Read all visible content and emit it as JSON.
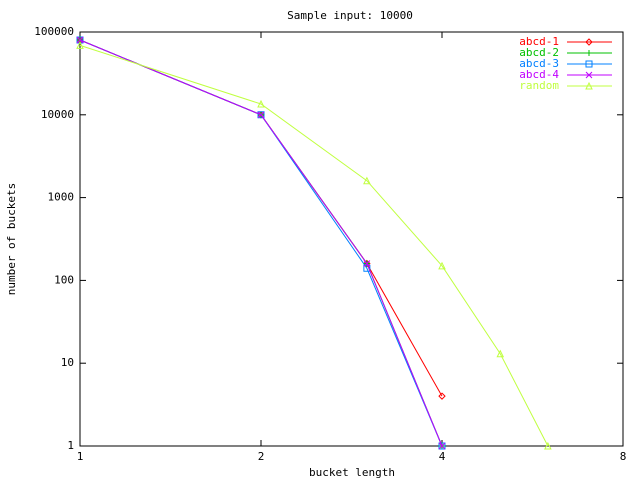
{
  "chart_data": {
    "type": "line",
    "title": "Sample input: 10000",
    "x_label": "bucket length",
    "y_label": "number of buckets",
    "xscale": "log",
    "yscale": "log",
    "xlim": [
      1,
      8
    ],
    "xticks": [
      1,
      2,
      4,
      8
    ],
    "ylim": [
      1,
      100000
    ],
    "yticks": [
      1,
      10,
      100,
      1000,
      10000,
      100000
    ],
    "legend": "top-right",
    "series": [
      {
        "name": "abcd-1",
        "color": "#ff0000",
        "marker": "diamond",
        "x": [
          1,
          2,
          3,
          4
        ],
        "values": [
          80000,
          10000,
          160,
          4
        ]
      },
      {
        "name": "abcd-2",
        "color": "#00c000",
        "marker": "plus",
        "x": [
          1,
          2,
          3,
          4
        ],
        "values": [
          80000,
          10000,
          160,
          1
        ]
      },
      {
        "name": "abcd-3",
        "color": "#0080ff",
        "marker": "square",
        "x": [
          1,
          2,
          3,
          4
        ],
        "values": [
          80000,
          10000,
          140,
          1
        ]
      },
      {
        "name": "abcd-4",
        "color": "#c000ff",
        "marker": "cross",
        "x": [
          1,
          2,
          3,
          4
        ],
        "values": [
          80000,
          10000,
          160,
          1
        ]
      },
      {
        "name": "random",
        "color": "#c0ff40",
        "marker": "triangle",
        "x": [
          1,
          2,
          3,
          4,
          5,
          6
        ],
        "values": [
          69000,
          13500,
          1600,
          150,
          13,
          1
        ]
      }
    ]
  }
}
